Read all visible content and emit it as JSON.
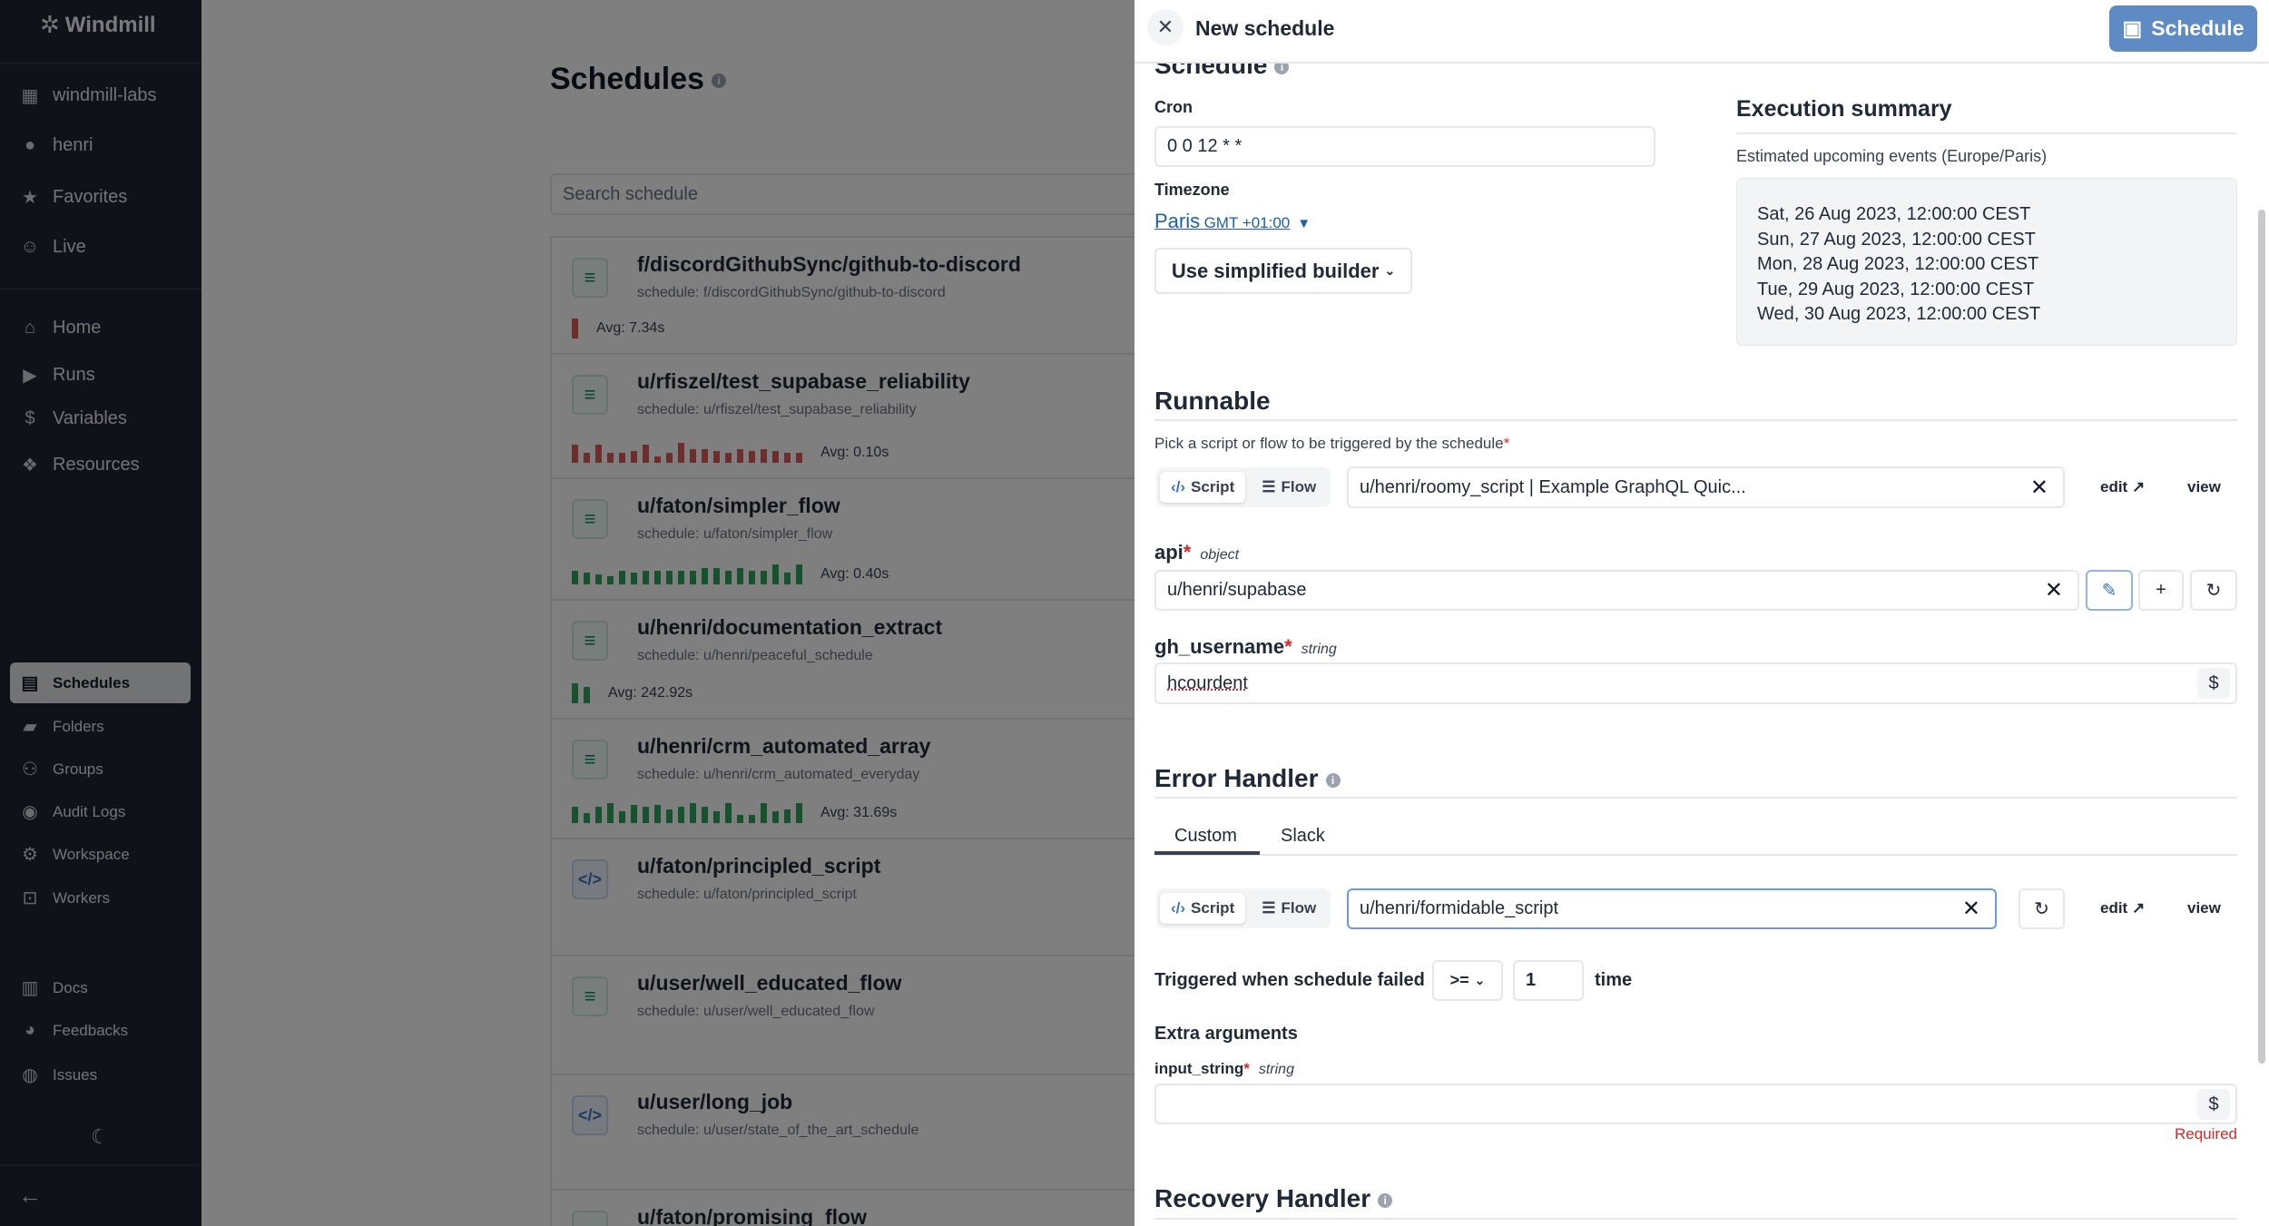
{
  "sidebar": {
    "logo": "Windmill",
    "top_items": [
      {
        "label": "windmill-labs",
        "icon": "building-icon"
      },
      {
        "label": "henri",
        "icon": "user-icon"
      },
      {
        "label": "Favorites",
        "icon": "star-icon"
      },
      {
        "label": "Live",
        "icon": "users-icon"
      }
    ],
    "main_items": [
      {
        "label": "Home",
        "icon": "home-icon"
      },
      {
        "label": "Runs",
        "icon": "play-icon"
      },
      {
        "label": "Variables",
        "icon": "dollar-icon"
      },
      {
        "label": "Resources",
        "icon": "boxes-icon"
      }
    ],
    "secondary_items": [
      {
        "label": "Schedules",
        "icon": "calendar-icon",
        "active": true
      },
      {
        "label": "Folders",
        "icon": "folder-icon"
      },
      {
        "label": "Groups",
        "icon": "groups-icon"
      },
      {
        "label": "Audit Logs",
        "icon": "eye-icon"
      },
      {
        "label": "Workspace",
        "icon": "gear-icon"
      },
      {
        "label": "Workers",
        "icon": "robot-icon"
      }
    ],
    "footer_items": [
      {
        "label": "Docs",
        "icon": "book-icon"
      },
      {
        "label": "Feedbacks",
        "icon": "discord-icon"
      },
      {
        "label": "Issues",
        "icon": "github-icon"
      }
    ]
  },
  "main": {
    "title": "Schedules",
    "search_placeholder": "Search schedule",
    "schedules": [
      {
        "title": "f/discordGithubSync/github-to-discord",
        "subtitle": "schedule: f/discordGithubSync/github-to-discord",
        "kind": "flow",
        "avg": "Avg: 7.34s",
        "status": "failure",
        "bars": [
          1
        ]
      },
      {
        "title": "u/rfiszel/test_supabase_reliability",
        "subtitle": "schedule: u/rfiszel/test_supabase_reliability",
        "kind": "flow",
        "avg": "Avg: 0.10s",
        "status": "failure",
        "bars": [
          0.9,
          0.5,
          0.9,
          0.5,
          0.5,
          0.6,
          0.9,
          0.3,
          0.5,
          1,
          0.7,
          0.7,
          0.6,
          0.5,
          0.7,
          0.6,
          0.7,
          0.6,
          0.5,
          0.5
        ]
      },
      {
        "title": "u/faton/simpler_flow",
        "subtitle": "schedule: u/faton/simpler_flow",
        "kind": "flow",
        "avg": "Avg: 0.40s",
        "status": "success",
        "bars": [
          0.7,
          0.6,
          0.5,
          0.4,
          0.7,
          0.6,
          0.7,
          0.7,
          0.7,
          0.7,
          0.7,
          0.8,
          0.8,
          0.7,
          0.8,
          0.7,
          0.7,
          1,
          0.6,
          1
        ]
      },
      {
        "title": "u/henri/documentation_extract",
        "subtitle": "schedule: u/henri/peaceful_schedule",
        "kind": "flow",
        "avg": "Avg: 242.92s",
        "status": "success",
        "bars": [
          1,
          0.8
        ]
      },
      {
        "title": "u/henri/crm_automated_array",
        "subtitle": "schedule: u/henri/crm_automated_everyday",
        "kind": "flow",
        "avg": "Avg: 31.69s",
        "status": "success",
        "bars": [
          0.8,
          0.5,
          0.8,
          1,
          0.6,
          0.9,
          0.8,
          0.9,
          0.7,
          0.8,
          1,
          0.8,
          0.6,
          1,
          0.4,
          0.4,
          1,
          0.6,
          0.7,
          1
        ]
      },
      {
        "title": "u/faton/principled_script",
        "subtitle": "schedule: u/faton/principled_script",
        "kind": "script"
      },
      {
        "title": "u/user/well_educated_flow",
        "subtitle": "schedule: u/user/well_educated_flow",
        "kind": "flow"
      },
      {
        "title": "u/user/long_job",
        "subtitle": "schedule: u/user/state_of_the_art_schedule",
        "kind": "script"
      },
      {
        "title": "u/faton/promising_flow",
        "subtitle": "",
        "kind": "flow"
      }
    ]
  },
  "drawer": {
    "title": "New schedule",
    "save_label": "Schedule",
    "schedule_heading": "Schedule",
    "cron_label": "Cron",
    "cron_value": "0 0 12 * *",
    "timezone_label": "Timezone",
    "timezone_city": "Paris",
    "timezone_offset": "GMT +01:00",
    "builder_label": "Use simplified builder",
    "exec_heading": "Execution summary",
    "exec_sub": "Estimated upcoming events (Europe/Paris)",
    "events": [
      "Sat, 26 Aug 2023, 12:00:00 CEST",
      "Sun, 27 Aug 2023, 12:00:00 CEST",
      "Mon, 28 Aug 2023, 12:00:00 CEST",
      "Tue, 29 Aug 2023, 12:00:00 CEST",
      "Wed, 30 Aug 2023, 12:00:00 CEST"
    ],
    "runnable": {
      "heading": "Runnable",
      "hint": "Pick a script or flow to be triggered by the schedule",
      "script_label": "Script",
      "flow_label": "Flow",
      "value": "u/henri/roomy_script | Example GraphQL Quic...",
      "edit_label": "edit",
      "view_label": "view"
    },
    "args": [
      {
        "name": "api",
        "type": "object",
        "value": "u/henri/supabase"
      },
      {
        "name": "gh_username",
        "type": "string",
        "value": "hcourdent"
      }
    ],
    "error_handler": {
      "heading": "Error Handler",
      "tabs": [
        "Custom",
        "Slack"
      ],
      "active_tab": "Custom",
      "script_label": "Script",
      "flow_label": "Flow",
      "value": "u/henri/formidable_script",
      "edit_label": "edit",
      "view_label": "view",
      "trigger_label": "Triggered when schedule failed",
      "operator": ">=",
      "times": "1",
      "time_label": "time",
      "extra_heading": "Extra arguments",
      "extra_arg_name": "input_string",
      "extra_arg_type": "string",
      "extra_arg_value": "",
      "required_label": "Required"
    },
    "recovery_heading": "Recovery Handler"
  },
  "colors": {
    "accent": "#5f8bc4",
    "failure": "#dc5b5b",
    "success": "#2ea55d",
    "link": "#2563eb"
  }
}
